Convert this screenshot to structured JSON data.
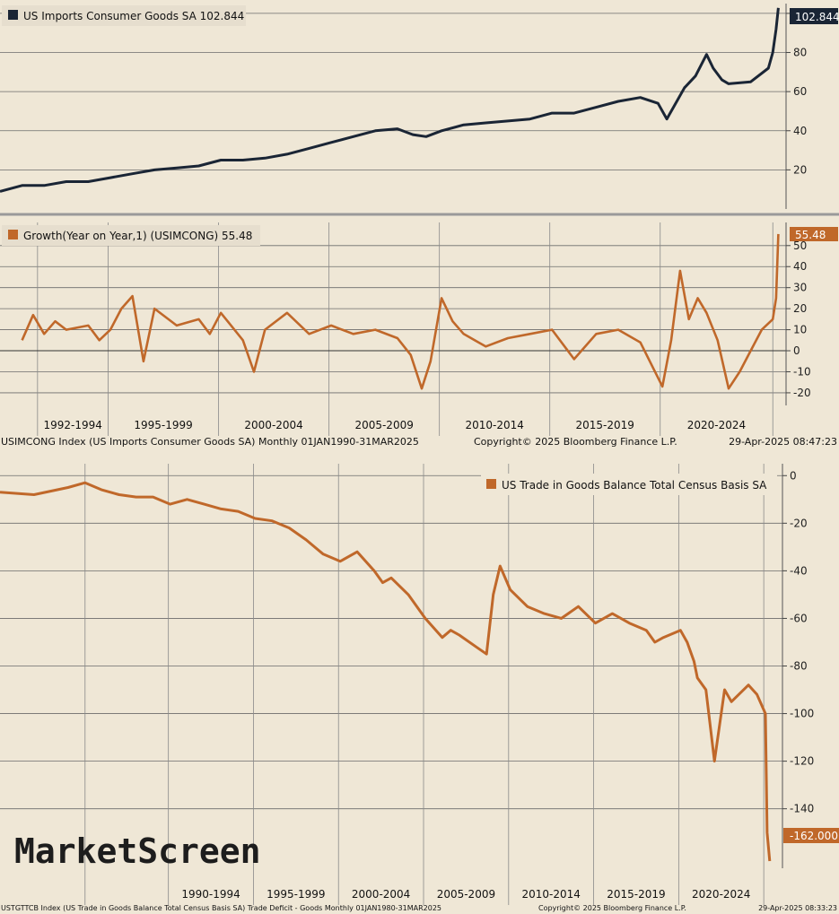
{
  "chart_data": [
    {
      "type": "line",
      "legend": "US Imports Consumer Goods SA 102.844",
      "last_value_label": "102.844",
      "y_ticks": [
        20,
        40,
        60,
        80,
        100
      ],
      "ylim": [
        0,
        105
      ],
      "line_color": "#1a2535",
      "series": [
        {
          "name": "US Imports Consumer Goods SA",
          "x": [
            1990.0,
            1991.0,
            1992.0,
            1993.0,
            1994.0,
            1995.0,
            1996.0,
            1997.0,
            1998.0,
            1999.0,
            2000.0,
            2001.0,
            2002.0,
            2003.0,
            2004.0,
            2005.0,
            2006.0,
            2007.0,
            2008.0,
            2008.7,
            2009.3,
            2010.0,
            2011.0,
            2012.0,
            2013.0,
            2014.0,
            2015.0,
            2016.0,
            2017.0,
            2018.0,
            2019.0,
            2019.8,
            2020.2,
            2020.5,
            2021.0,
            2021.5,
            2022.0,
            2022.3,
            2022.7,
            2023.0,
            2024.0,
            2024.8,
            2025.0,
            2025.15,
            2025.25
          ],
          "values": [
            9,
            12,
            12,
            14,
            14,
            16,
            18,
            20,
            21,
            22,
            25,
            25,
            26,
            28,
            31,
            34,
            37,
            40,
            41,
            38,
            37,
            40,
            43,
            44,
            45,
            46,
            49,
            49,
            52,
            55,
            57,
            54,
            46,
            52,
            62,
            68,
            79,
            72,
            66,
            64,
            65,
            72,
            80,
            92,
            102.8
          ]
        }
      ]
    },
    {
      "type": "line",
      "legend": "Growth(Year on Year,1) (USIMCONG) 55.48",
      "last_value_label": "55.48",
      "y_ticks": [
        -20,
        -10,
        0,
        10,
        20,
        30,
        40,
        50
      ],
      "ylim": [
        -26,
        61
      ],
      "line_color": "#c0682a",
      "x_tick_labels": [
        "1992-1994",
        "1995-1999",
        "2000-2004",
        "2005-2009",
        "2010-2014",
        "2015-2019",
        "2020-2024"
      ],
      "series": [
        {
          "name": "Growth(Year on Year,1) (USIMCONG)",
          "x": [
            1991.0,
            1991.5,
            1992.0,
            1992.5,
            1993.0,
            1994.0,
            1994.5,
            1995.0,
            1995.5,
            1996.0,
            1996.5,
            1997.0,
            1998.0,
            1999.0,
            1999.5,
            2000.0,
            2001.0,
            2001.5,
            2002.0,
            2003.0,
            2004.0,
            2005.0,
            2006.0,
            2007.0,
            2008.0,
            2008.6,
            2009.1,
            2009.5,
            2010.0,
            2010.5,
            2011.0,
            2012.0,
            2013.0,
            2014.0,
            2015.0,
            2016.0,
            2017.0,
            2018.0,
            2019.0,
            2020.0,
            2020.4,
            2020.8,
            2021.2,
            2021.6,
            2022.0,
            2022.5,
            2023.0,
            2023.5,
            2024.0,
            2024.5,
            2025.0,
            2025.15,
            2025.25
          ],
          "values": [
            5,
            17,
            8,
            14,
            10,
            12,
            5,
            10,
            20,
            26,
            -5,
            20,
            12,
            15,
            8,
            18,
            5,
            -10,
            10,
            18,
            8,
            12,
            8,
            10,
            6,
            -2,
            -18,
            -5,
            25,
            14,
            8,
            2,
            6,
            8,
            10,
            -4,
            8,
            10,
            4,
            -17,
            5,
            38,
            15,
            25,
            18,
            5,
            -18,
            -10,
            0,
            10,
            15,
            25,
            55.48
          ]
        }
      ]
    },
    {
      "type": "line",
      "legend": "US Trade in Goods Balance Total Census Basis SA",
      "last_value_label": "-162.000",
      "y_ticks": [
        0,
        -20,
        -40,
        -60,
        -80,
        -100,
        -120,
        -140
      ],
      "ylim": [
        -165,
        5
      ],
      "line_color": "#c0682a",
      "x_tick_labels": [
        "1990-1994",
        "1995-1999",
        "2000-2004",
        "2005-2009",
        "2010-2014",
        "2015-2019",
        "2020-2024"
      ],
      "series": [
        {
          "name": "US Trade in Goods Balance Total Census Basis SA",
          "x": [
            1980.0,
            1982.0,
            1984.0,
            1985.0,
            1986.0,
            1987.0,
            1988.0,
            1989.0,
            1990.0,
            1991.0,
            1992.0,
            1993.0,
            1994.0,
            1995.0,
            1996.0,
            1997.0,
            1998.0,
            1998.5,
            1999.0,
            2000.0,
            2001.0,
            2002.0,
            2002.5,
            2003.0,
            2004.0,
            2005.0,
            2006.0,
            2006.5,
            2007.0,
            2008.0,
            2008.6,
            2009.0,
            2009.4,
            2010.0,
            2011.0,
            2012.0,
            2013.0,
            2014.0,
            2015.0,
            2016.0,
            2017.0,
            2018.0,
            2018.5,
            2019.0,
            2020.0,
            2020.4,
            2020.8,
            2021.0,
            2021.5,
            2022.0,
            2022.6,
            2023.0,
            2024.0,
            2024.5,
            2025.0,
            2025.1,
            2025.25
          ],
          "values": [
            -7,
            -8,
            -5,
            -3,
            -6,
            -8,
            -9,
            -9,
            -12,
            -10,
            -12,
            -14,
            -15,
            -18,
            -19,
            -22,
            -27,
            -30,
            -33,
            -36,
            -32,
            -40,
            -45,
            -43,
            -50,
            -60,
            -68,
            -65,
            -67,
            -72,
            -75,
            -50,
            -38,
            -48,
            -55,
            -58,
            -60,
            -55,
            -62,
            -58,
            -62,
            -65,
            -70,
            -68,
            -65,
            -70,
            -78,
            -85,
            -90,
            -120,
            -90,
            -95,
            -88,
            -92,
            -100,
            -150,
            -162
          ]
        }
      ]
    }
  ],
  "footer_top": {
    "left": "USIMCONG Index (US Imports Consumer Goods SA)  Monthly 01JAN1990-31MAR2025",
    "mid": "Copyright© 2025 Bloomberg Finance L.P.",
    "right": "29-Apr-2025 08:47:23"
  },
  "footer_bottom": {
    "left": "USTGTTCB Index (US Trade in Goods Balance Total Census Basis SA) Trade Deficit - Goods  Monthly 01JAN1980-31MAR2025",
    "mid": "Copyright© 2025 Bloomberg Finance L.P.",
    "right": "29-Apr-2025 08:33:23"
  },
  "brand": "MarketScreen"
}
